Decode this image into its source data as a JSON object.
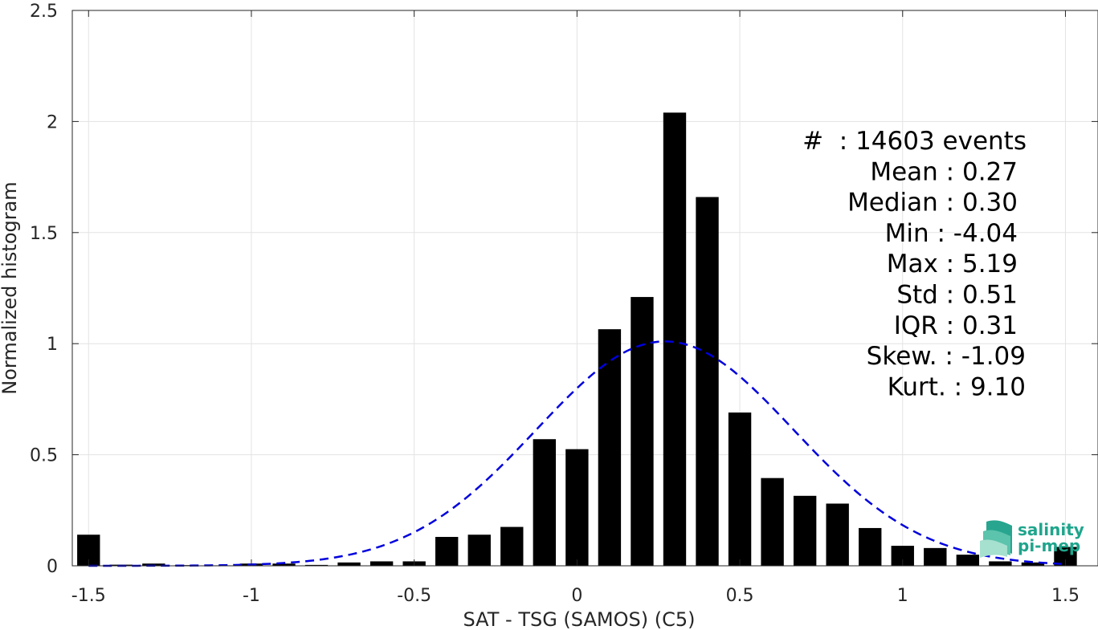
{
  "chart_data": {
    "type": "bar",
    "xlabel": "SAT - TSG (SAMOS) (C5)",
    "ylabel": "Normalized histogram",
    "xlim": [
      -1.55,
      1.6
    ],
    "ylim": [
      0,
      2.5
    ],
    "grid": true,
    "x_ticks": [
      -1.5,
      -1,
      -0.5,
      0,
      0.5,
      1,
      1.5
    ],
    "x_tick_labels": [
      "-1.5",
      "-1",
      "-0.5",
      "0",
      "0.5",
      "1",
      "1.5"
    ],
    "y_ticks": [
      0,
      0.5,
      1,
      1.5,
      2,
      2.5
    ],
    "y_tick_labels": [
      "0",
      "0.5",
      "1",
      "1.5",
      "2",
      "2.5"
    ],
    "bin_width": 0.1,
    "bar_color": "#000000",
    "x": [
      -1.5,
      -1.4,
      -1.3,
      -1.2,
      -1.1,
      -1.0,
      -0.9,
      -0.8,
      -0.7,
      -0.6,
      -0.5,
      -0.4,
      -0.3,
      -0.2,
      -0.1,
      0.0,
      0.1,
      0.2,
      0.3,
      0.4,
      0.5,
      0.6,
      0.7,
      0.8,
      0.9,
      1.0,
      1.1,
      1.2,
      1.3,
      1.4,
      1.5
    ],
    "values": [
      0.14,
      0.005,
      0.01,
      0.003,
      0.002,
      0.01,
      0.01,
      0.004,
      0.015,
      0.02,
      0.02,
      0.13,
      0.14,
      0.175,
      0.57,
      0.525,
      1.065,
      1.21,
      2.04,
      1.66,
      0.69,
      0.395,
      0.315,
      0.28,
      0.17,
      0.09,
      0.08,
      0.05,
      0.02,
      0.015,
      0.085
    ],
    "fit_curve": {
      "type": "normal",
      "mean": 0.27,
      "std": 0.395,
      "peak": 1.01,
      "color": "#0000dd",
      "style": "dashed"
    },
    "stats_box": {
      "placement": "top-right",
      "lines": [
        "#  : 14603 events",
        "Mean : 0.27",
        "Median : 0.30",
        "Min : -4.04",
        "Max : 5.19",
        "Std : 0.51",
        "IQR : 0.31",
        "Skew. : -1.09",
        "Kurt. : 9.10"
      ]
    },
    "logo": {
      "line1": "salinity",
      "line2": "pi-mep",
      "color": "#1fa58c"
    }
  }
}
